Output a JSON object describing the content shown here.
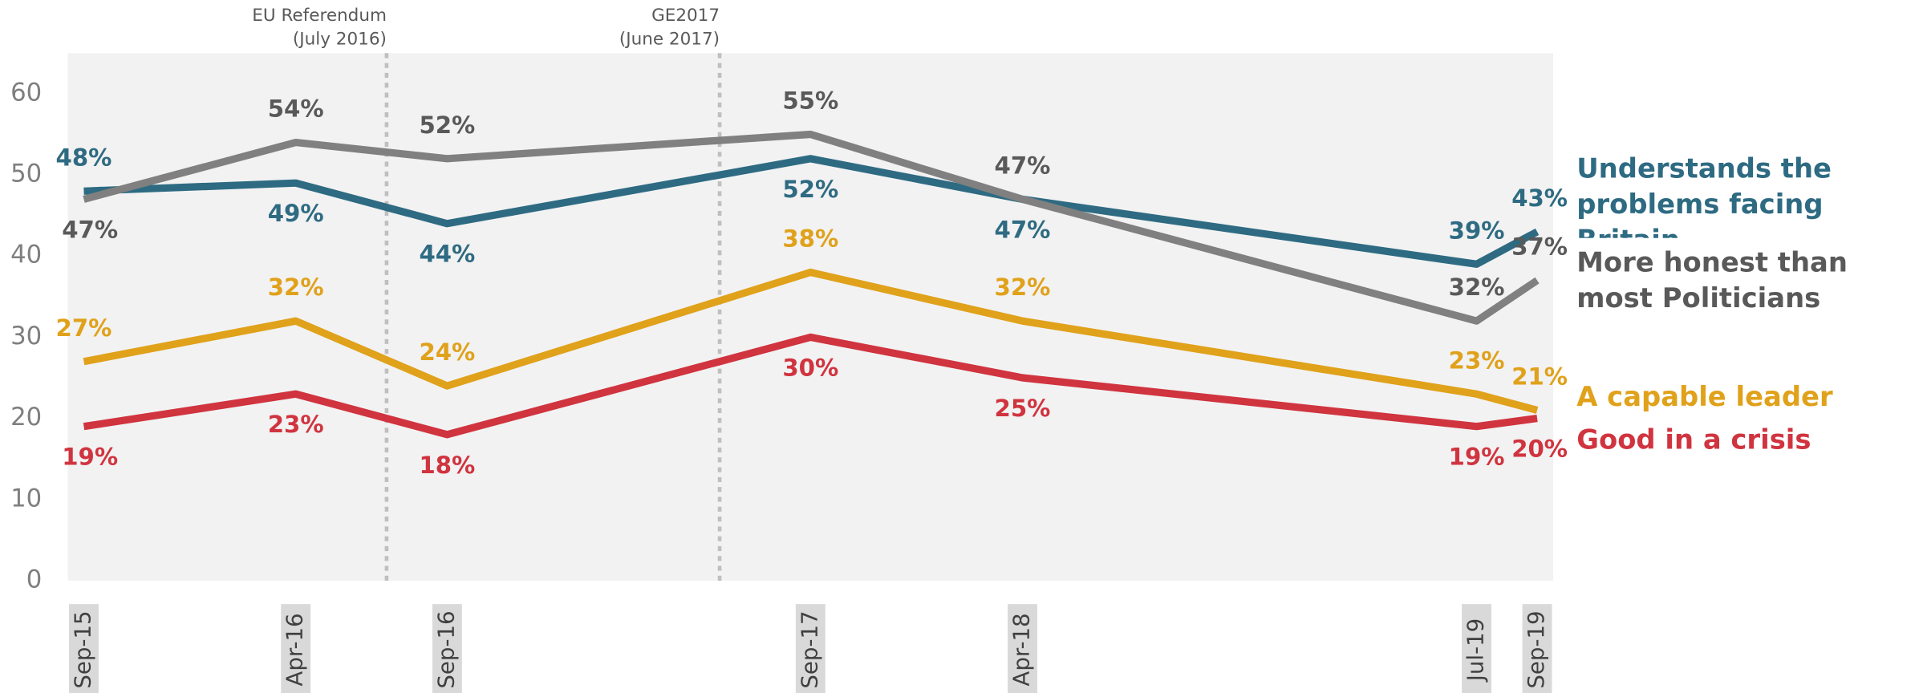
{
  "chart_data": {
    "type": "line",
    "x": [
      "Sep-15",
      "Apr-16",
      "Sep-16",
      "Sep-17",
      "Apr-18",
      "Jul-19",
      "Sep-19"
    ],
    "series": [
      {
        "name": "Understands the problems facing Britain",
        "color": "#2e6b82",
        "values": [
          48,
          49,
          44,
          52,
          47,
          39,
          43
        ],
        "value_labels": [
          "48%",
          "49%",
          "44%",
          "52%",
          "47%",
          "39%",
          "43%"
        ]
      },
      {
        "name": "More honest than most Politicians",
        "color": "#808080",
        "values": [
          47,
          54,
          52,
          55,
          47,
          32,
          37
        ],
        "value_labels": [
          "47%",
          "54%",
          "52%",
          "55%",
          "47%",
          "32%",
          "37%"
        ]
      },
      {
        "name": "A capable leader",
        "color": "#e0a11b",
        "values": [
          27,
          32,
          24,
          38,
          32,
          23,
          21
        ],
        "value_labels": [
          "27%",
          "32%",
          "24%",
          "38%",
          "32%",
          "23%",
          "21%"
        ]
      },
      {
        "name": "Good in a crisis",
        "color": "#d0343f",
        "values": [
          19,
          23,
          18,
          30,
          25,
          19,
          20
        ],
        "value_labels": [
          "19%",
          "23%",
          "18%",
          "30%",
          "25%",
          "19%",
          "20%"
        ]
      }
    ],
    "annotations": [
      {
        "x": "Jul-16",
        "text": [
          "EU Referendum",
          "(July 2016)"
        ]
      },
      {
        "x": "Jun-17",
        "text": [
          "GE2017",
          "(June 2017)"
        ]
      }
    ],
    "ylim": [
      0,
      65
    ],
    "yticks": [
      0,
      10,
      20,
      30,
      40,
      50,
      60
    ]
  }
}
